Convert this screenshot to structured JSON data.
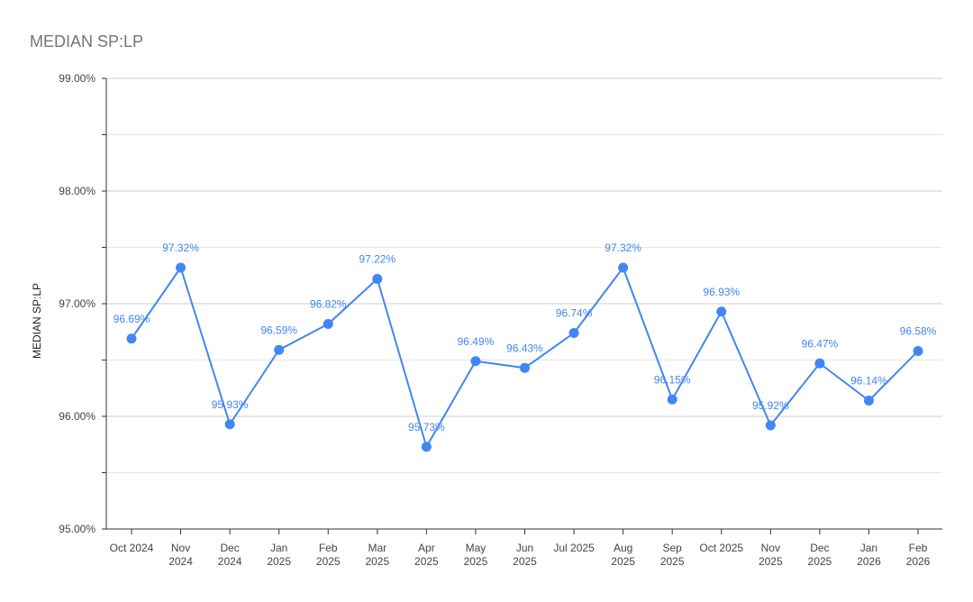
{
  "chart_data": {
    "type": "line",
    "title": "MEDIAN SP:LP",
    "xlabel": "",
    "ylabel": "MEDIAN SP:LP",
    "ylim": [
      95,
      99
    ],
    "y_ticks": [
      "95.00%",
      "96.00%",
      "97.00%",
      "98.00%",
      "99.00%"
    ],
    "y_tick_values": [
      95,
      96,
      97,
      98,
      99
    ],
    "grid": true,
    "legend": "none",
    "categories": [
      [
        "Oct 2024"
      ],
      [
        "Nov",
        "2024"
      ],
      [
        "Dec",
        "2024"
      ],
      [
        "Jan",
        "2025"
      ],
      [
        "Feb",
        "2025"
      ],
      [
        "Mar",
        "2025"
      ],
      [
        "Apr",
        "2025"
      ],
      [
        "May",
        "2025"
      ],
      [
        "Jun",
        "2025"
      ],
      [
        "Jul 2025"
      ],
      [
        "Aug",
        "2025"
      ],
      [
        "Sep",
        "2025"
      ],
      [
        "Oct 2025"
      ],
      [
        "Nov",
        "2025"
      ],
      [
        "Dec",
        "2025"
      ],
      [
        "Jan",
        "2026"
      ],
      [
        "Feb",
        "2026"
      ]
    ],
    "values": [
      96.69,
      97.32,
      95.93,
      96.59,
      96.82,
      97.22,
      95.73,
      96.49,
      96.43,
      96.74,
      97.32,
      96.15,
      96.93,
      95.92,
      96.47,
      96.14,
      96.58
    ],
    "data_labels": [
      "96.69%",
      "97.32%",
      "95.93%",
      "96.59%",
      "96.82%",
      "97.22%",
      "95.73%",
      "96.49%",
      "96.43%",
      "96.74%",
      "97.32%",
      "96.15%",
      "96.93%",
      "95.92%",
      "96.47%",
      "96.14%",
      "96.58%"
    ],
    "colors": {
      "series": "#4285f4",
      "grid": "#d9d9d9",
      "axis": "#333333",
      "title": "#757575"
    }
  }
}
